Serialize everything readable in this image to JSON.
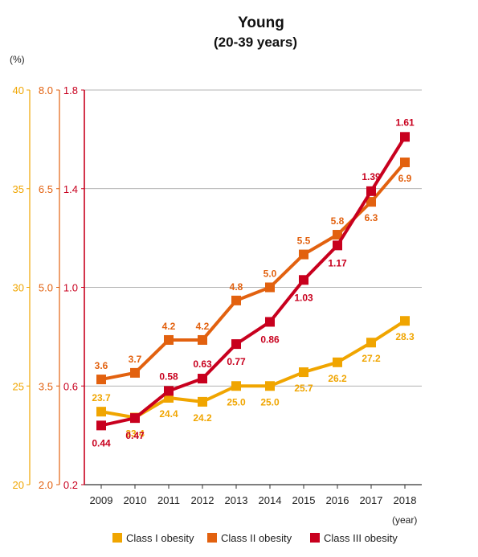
{
  "chart_data": {
    "type": "line",
    "title": "Young",
    "subtitle": "(20-39 years)",
    "y_unit_label": "(%)",
    "x_unit_label": "(year)",
    "categories": [
      "2009",
      "2010",
      "2011",
      "2012",
      "2013",
      "2014",
      "2015",
      "2016",
      "2017",
      "2018"
    ],
    "axes": [
      {
        "id": "axis1",
        "color": "#F0A500",
        "ylim": [
          20,
          40
        ],
        "ticks": [
          "20",
          "25",
          "30",
          "35",
          "40"
        ]
      },
      {
        "id": "axis2",
        "color": "#E2610F",
        "ylim": [
          2.0,
          8.0
        ],
        "ticks": [
          "2.0",
          "3.5",
          "5.0",
          "6.5",
          "8.0"
        ]
      },
      {
        "id": "axis3",
        "color": "#C8001E",
        "ylim": [
          0.2,
          1.8
        ],
        "ticks": [
          "0.2",
          "0.6",
          "1.0",
          "1.4",
          "1.8"
        ]
      }
    ],
    "grid": true,
    "legend_position": "bottom",
    "series": [
      {
        "name": "Class I obesity",
        "axis": "axis1",
        "color": "#F0A500",
        "values": [
          23.7,
          23.4,
          24.4,
          24.2,
          25.0,
          25.0,
          25.7,
          26.2,
          27.2,
          28.3
        ],
        "labels": [
          "23.7",
          "23.4",
          "24.4",
          "24.2",
          "25.0",
          "25.0",
          "25.7",
          "26.2",
          "27.2",
          "28.3"
        ]
      },
      {
        "name": "Class II obesity",
        "axis": "axis2",
        "color": "#E2610F",
        "values": [
          3.6,
          3.7,
          4.2,
          4.2,
          4.8,
          5.0,
          5.5,
          5.8,
          6.3,
          6.9
        ],
        "labels": [
          "3.6",
          "3.7",
          "4.2",
          "4.2",
          "4.8",
          "5.0",
          "5.5",
          "5.8",
          "6.3",
          "6.9"
        ]
      },
      {
        "name": "Class III obesity",
        "axis": "axis3",
        "color": "#C8001E",
        "values": [
          0.44,
          0.47,
          0.58,
          0.63,
          0.77,
          0.86,
          1.03,
          1.17,
          1.39,
          1.61
        ],
        "labels": [
          "0.44",
          "0.47",
          "0.58",
          "0.63",
          "0.77",
          "0.86",
          "1.03",
          "1.17",
          "1.39",
          "1.61"
        ]
      }
    ]
  }
}
